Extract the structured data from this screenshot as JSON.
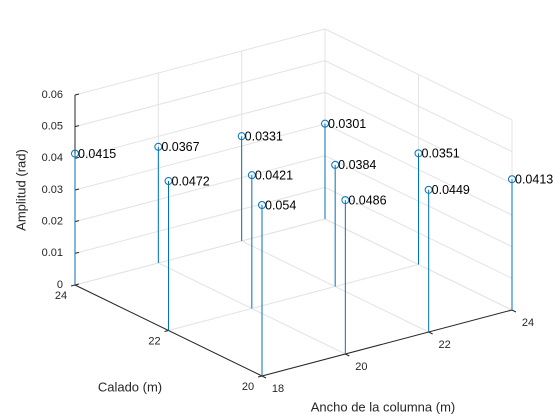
{
  "chart_data": {
    "type": "stem3",
    "xlabel": "Ancho de la columna (m)",
    "ylabel": "Calado (m)",
    "zlabel": "Amplitud (rad)",
    "x": [
      18,
      20,
      22,
      24,
      18,
      20,
      22,
      24,
      18,
      20,
      22,
      24
    ],
    "y": [
      24,
      24,
      24,
      24,
      22,
      22,
      22,
      22,
      20,
      20,
      20,
      20
    ],
    "z": [
      0.0415,
      0.0367,
      0.0331,
      0.0301,
      0.0472,
      0.0421,
      0.0384,
      0.0351,
      0.054,
      0.0486,
      0.0449,
      0.0413
    ],
    "color": "#0072bd",
    "xlim": [
      18,
      24
    ],
    "ylim": [
      20,
      24
    ],
    "zlim": [
      0,
      0.06
    ],
    "xticks": [
      18,
      20,
      22,
      24
    ],
    "yticks": [
      20,
      22,
      24
    ],
    "zticks": [
      0,
      0.01,
      0.02,
      0.03,
      0.04,
      0.05,
      0.06
    ],
    "grid": true
  }
}
